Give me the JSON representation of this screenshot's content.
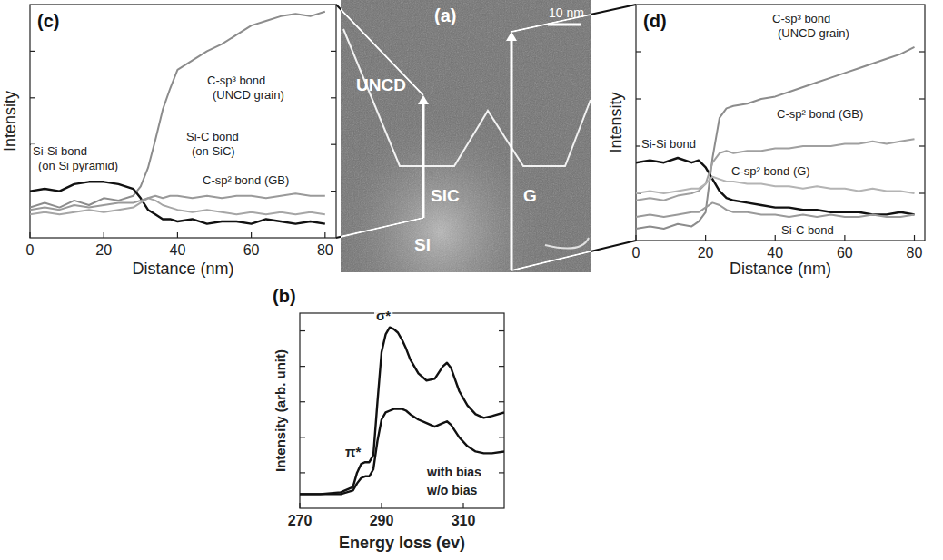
{
  "image_panel": {
    "label": "(a)",
    "scale_bar": "10 nm",
    "regions": [
      "UNCD",
      "SiC",
      "G",
      "Si"
    ]
  },
  "chart_data": [
    {
      "type": "line",
      "title": "(c)",
      "x_label": "Distance (nm)",
      "y_label": "Intensity",
      "xlim": [
        0,
        83
      ],
      "xticks": [
        0,
        20,
        40,
        60,
        80
      ],
      "ylim": [
        0,
        1
      ],
      "yticks": [
        0.2,
        0.4,
        0.6,
        0.8
      ],
      "tick_labels": "x",
      "grid": false,
      "x": [
        0,
        4,
        8,
        12,
        16,
        20,
        24,
        28,
        30,
        32,
        34,
        36,
        38,
        40,
        44,
        48,
        52,
        56,
        60,
        64,
        68,
        72,
        76,
        80
      ],
      "series": [
        {
          "name": "C-sp³ bond (UNCD grain)",
          "color": "#8c8c8c",
          "values": [
            0.13,
            0.15,
            0.13,
            0.16,
            0.14,
            0.17,
            0.16,
            0.18,
            0.22,
            0.3,
            0.42,
            0.55,
            0.64,
            0.72,
            0.76,
            0.8,
            0.83,
            0.87,
            0.91,
            0.93,
            0.95,
            0.96,
            0.95,
            0.97
          ]
        },
        {
          "name": "Si-Si bond (on Si pyramid)",
          "color": "#111111",
          "values": [
            0.2,
            0.21,
            0.2,
            0.23,
            0.24,
            0.24,
            0.23,
            0.21,
            0.17,
            0.12,
            0.1,
            0.08,
            0.08,
            0.07,
            0.08,
            0.06,
            0.07,
            0.07,
            0.06,
            0.08,
            0.07,
            0.06,
            0.07,
            0.06
          ]
        },
        {
          "name": "Si-C bond (on SiC)",
          "color": "#a6a6a6",
          "values": [
            0.1,
            0.11,
            0.1,
            0.11,
            0.12,
            0.11,
            0.12,
            0.13,
            0.15,
            0.17,
            0.16,
            0.14,
            0.13,
            0.12,
            0.11,
            0.12,
            0.11,
            0.1,
            0.11,
            0.1,
            0.11,
            0.1,
            0.11,
            0.1
          ]
        },
        {
          "name": "C-sp² bond (GB)",
          "color": "#9a9a9a",
          "values": [
            0.12,
            0.13,
            0.12,
            0.14,
            0.13,
            0.14,
            0.15,
            0.15,
            0.16,
            0.17,
            0.18,
            0.17,
            0.18,
            0.18,
            0.17,
            0.18,
            0.17,
            0.18,
            0.18,
            0.17,
            0.18,
            0.19,
            0.18,
            0.18
          ]
        }
      ]
    },
    {
      "type": "line",
      "title": "(b)",
      "x_label": "Energy loss (ev)",
      "y_label": "Intensity (arb. unit)",
      "xlim": [
        270,
        320
      ],
      "xticks": [
        270,
        290,
        310
      ],
      "ylim": [
        0,
        1.1
      ],
      "yticks": [
        0.2,
        0.4,
        0.6,
        0.8,
        1.0
      ],
      "tick_labels": "x",
      "grid": false,
      "annotations": [
        "π*",
        "σ*"
      ],
      "x": [
        270,
        275,
        280,
        283,
        284,
        285,
        286,
        287,
        288,
        289,
        290,
        291,
        292,
        293,
        294,
        295,
        296,
        297,
        299,
        301,
        303,
        305,
        306,
        307,
        309,
        311,
        313,
        315,
        317,
        320
      ],
      "series": [
        {
          "name": "with bias",
          "color": "#111111",
          "values": [
            0.08,
            0.08,
            0.09,
            0.12,
            0.2,
            0.25,
            0.26,
            0.26,
            0.3,
            0.6,
            0.88,
            0.98,
            1.02,
            1.01,
            0.99,
            0.95,
            0.9,
            0.84,
            0.76,
            0.72,
            0.73,
            0.8,
            0.82,
            0.79,
            0.66,
            0.58,
            0.53,
            0.51,
            0.52,
            0.54
          ]
        },
        {
          "name": "w/o bias",
          "color": "#111111",
          "values": [
            0.08,
            0.08,
            0.08,
            0.1,
            0.14,
            0.17,
            0.18,
            0.18,
            0.22,
            0.38,
            0.5,
            0.54,
            0.55,
            0.56,
            0.56,
            0.56,
            0.55,
            0.53,
            0.5,
            0.48,
            0.46,
            0.48,
            0.49,
            0.47,
            0.4,
            0.35,
            0.32,
            0.31,
            0.31,
            0.32
          ]
        }
      ]
    },
    {
      "type": "line",
      "title": "(d)",
      "x_label": "Distance (nm)",
      "y_label": "Intensity",
      "xlim": [
        0,
        83
      ],
      "xticks": [
        0,
        20,
        40,
        60,
        80
      ],
      "ylim": [
        0,
        1
      ],
      "yticks": [
        0.2,
        0.4,
        0.6,
        0.8
      ],
      "tick_labels": "x",
      "grid": false,
      "x": [
        0,
        4,
        8,
        12,
        16,
        18,
        20,
        22,
        24,
        26,
        28,
        32,
        36,
        40,
        44,
        48,
        52,
        56,
        60,
        64,
        68,
        72,
        76,
        80
      ],
      "series": [
        {
          "name": "C-sp³ bond (UNCD grain)",
          "color": "#8c8c8c",
          "values": [
            0.05,
            0.06,
            0.05,
            0.07,
            0.06,
            0.08,
            0.12,
            0.35,
            0.52,
            0.56,
            0.57,
            0.58,
            0.6,
            0.61,
            0.63,
            0.65,
            0.67,
            0.69,
            0.71,
            0.73,
            0.75,
            0.77,
            0.79,
            0.82
          ]
        },
        {
          "name": "Si-Si bond",
          "color": "#111111",
          "values": [
            0.33,
            0.34,
            0.33,
            0.35,
            0.33,
            0.34,
            0.31,
            0.26,
            0.21,
            0.18,
            0.17,
            0.16,
            0.15,
            0.14,
            0.14,
            0.13,
            0.13,
            0.12,
            0.12,
            0.12,
            0.11,
            0.11,
            0.12,
            0.11
          ]
        },
        {
          "name": "C-sp² bond (GB)",
          "color": "#a0a0a0",
          "values": [
            0.17,
            0.18,
            0.17,
            0.19,
            0.2,
            0.21,
            0.24,
            0.33,
            0.37,
            0.38,
            0.37,
            0.38,
            0.38,
            0.39,
            0.39,
            0.4,
            0.4,
            0.4,
            0.41,
            0.41,
            0.42,
            0.41,
            0.42,
            0.43
          ]
        },
        {
          "name": "C-sp² bond (G)",
          "color": "#b4b4b4",
          "values": [
            0.2,
            0.21,
            0.2,
            0.21,
            0.22,
            0.22,
            0.24,
            0.27,
            0.26,
            0.25,
            0.25,
            0.24,
            0.24,
            0.23,
            0.23,
            0.22,
            0.23,
            0.22,
            0.22,
            0.21,
            0.22,
            0.21,
            0.21,
            0.2
          ]
        },
        {
          "name": "Si-C bond",
          "color": "#9a9a9a",
          "values": [
            0.1,
            0.11,
            0.1,
            0.11,
            0.12,
            0.12,
            0.14,
            0.16,
            0.15,
            0.13,
            0.12,
            0.12,
            0.11,
            0.11,
            0.1,
            0.11,
            0.1,
            0.11,
            0.1,
            0.1,
            0.11,
            0.1,
            0.1,
            0.11
          ]
        }
      ]
    }
  ]
}
